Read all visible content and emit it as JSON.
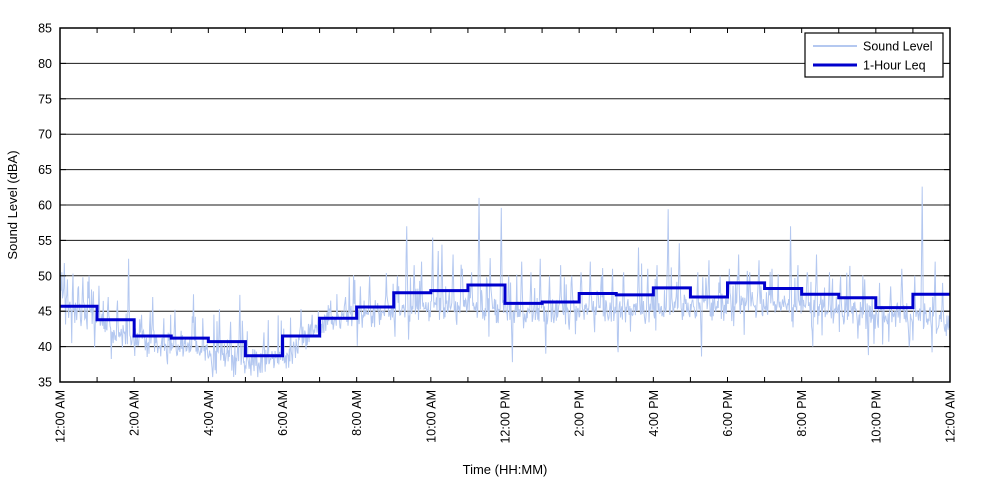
{
  "figure": {
    "background": "#ffffff",
    "grid_color": "#1a1a1a",
    "axis_color": "#000000"
  },
  "axes": {
    "ylabel": "Sound Level (dBA)",
    "xlabel": "Time (HH:MM)",
    "ylim": [
      35,
      85
    ],
    "yticks": [
      35,
      40,
      45,
      50,
      55,
      60,
      65,
      70,
      75,
      80,
      85
    ],
    "x_hours": 24,
    "xtick_label_every_hours": 2,
    "xtick_labels": [
      "12:00 AM",
      "2:00 AM",
      "4:00 AM",
      "6:00 AM",
      "8:00 AM",
      "10:00 AM",
      "12:00 PM",
      "2:00 PM",
      "4:00 PM",
      "6:00 PM",
      "8:00 PM",
      "10:00 PM",
      "12:00 AM"
    ]
  },
  "legend": {
    "position": "top-right",
    "items": [
      {
        "label": "Sound Level",
        "color": "#b4c8f0",
        "line_width": 2
      },
      {
        "label": "1-Hour Leq",
        "color": "#0000cd",
        "line_width": 3
      }
    ]
  },
  "chart_data": {
    "type": "line",
    "title": "",
    "xlabel": "Time (HH:MM)",
    "ylabel": "Sound Level (dBA)",
    "xlim_hours": [
      0,
      24
    ],
    "ylim": [
      35,
      85
    ],
    "grid": "horizontal-solid",
    "legend_position": "top-right",
    "series": [
      {
        "name": "Sound Level",
        "kind": "noisy-minute-trace",
        "color": "#b4c8f0",
        "stroke_width": 1,
        "noise": {
          "seed": 42,
          "points_per_hour": 60,
          "amplitude": 2.3,
          "spike_prob": 0.09,
          "dip_prob": 0.05,
          "hourly_centers": [
            45.6,
            43.2,
            40.8,
            39.8,
            39.5,
            37.9,
            38.4,
            43.0,
            44.7,
            45.0,
            45.3,
            45.6,
            45.2,
            44.8,
            45.2,
            45.5,
            45.6,
            45.4,
            45.6,
            46.0,
            45.5,
            45.0,
            44.3,
            44.4,
            42.8
          ],
          "events_up": [
            [
              0.05,
              50.5
            ],
            [
              0.12,
              51.8
            ],
            [
              0.2,
              49.5
            ],
            [
              0.35,
              50.3
            ],
            [
              0.5,
              48.5
            ],
            [
              0.62,
              49.8
            ],
            [
              0.78,
              50.0
            ],
            [
              0.9,
              47.8
            ],
            [
              1.05,
              48.6
            ],
            [
              1.3,
              47.0
            ],
            [
              1.55,
              46.5
            ],
            [
              1.85,
              52.4
            ],
            [
              2.2,
              44.5
            ],
            [
              2.5,
              47.0
            ],
            [
              2.8,
              44.0
            ],
            [
              3.1,
              45.2
            ],
            [
              3.6,
              47.4
            ],
            [
              3.85,
              44.0
            ],
            [
              4.3,
              45.3
            ],
            [
              4.6,
              43.5
            ],
            [
              4.85,
              47.3
            ],
            [
              5.5,
              42.0
            ],
            [
              6.5,
              45.3
            ],
            [
              6.8,
              44.5
            ],
            [
              7.3,
              46.5
            ],
            [
              7.7,
              47.0
            ],
            [
              8.1,
              48.5
            ],
            [
              8.35,
              50.0
            ],
            [
              8.8,
              50.4
            ],
            [
              9.1,
              50.0
            ],
            [
              9.35,
              57.0
            ],
            [
              9.55,
              51.5
            ],
            [
              9.75,
              52.0
            ],
            [
              10.05,
              55.4
            ],
            [
              10.2,
              53.5
            ],
            [
              10.3,
              54.4
            ],
            [
              10.6,
              53.0
            ],
            [
              10.85,
              51.0
            ],
            [
              11.1,
              50.5
            ],
            [
              11.3,
              61.0
            ],
            [
              11.6,
              52.5
            ],
            [
              11.9,
              59.6
            ],
            [
              12.1,
              50.0
            ],
            [
              12.45,
              52.0
            ],
            [
              12.7,
              50.5
            ],
            [
              12.95,
              52.4
            ],
            [
              13.2,
              50.0
            ],
            [
              13.5,
              51.5
            ],
            [
              13.8,
              50.0
            ],
            [
              14.05,
              50.5
            ],
            [
              14.3,
              52.0
            ],
            [
              14.6,
              50.0
            ],
            [
              14.9,
              51.0
            ],
            [
              15.2,
              50.5
            ],
            [
              15.6,
              54.0
            ],
            [
              15.85,
              51.0
            ],
            [
              16.1,
              51.5
            ],
            [
              16.4,
              59.4
            ],
            [
              16.7,
              54.6
            ],
            [
              17.2,
              50.5
            ],
            [
              17.5,
              52.2
            ],
            [
              17.8,
              50.0
            ],
            [
              18.05,
              51.0
            ],
            [
              18.3,
              53.0
            ],
            [
              18.6,
              50.5
            ],
            [
              18.85,
              52.2
            ],
            [
              19.2,
              51.0
            ],
            [
              19.7,
              57.0
            ],
            [
              19.9,
              51.5
            ],
            [
              20.15,
              50.5
            ],
            [
              20.4,
              53.0
            ],
            [
              20.75,
              50.5
            ],
            [
              21.05,
              50.0
            ],
            [
              21.3,
              51.4
            ],
            [
              21.7,
              49.5
            ],
            [
              22.1,
              49.0
            ],
            [
              22.4,
              48.5
            ],
            [
              22.7,
              51.0
            ],
            [
              23.05,
              50.0
            ],
            [
              23.25,
              62.6
            ],
            [
              23.6,
              52.0
            ],
            [
              23.8,
              49.0
            ]
          ],
          "events_down": [
            [
              2.9,
              37.5
            ],
            [
              4.1,
              37.0
            ],
            [
              5.15,
              35.9
            ],
            [
              5.4,
              36.3
            ],
            [
              12.2,
              37.8
            ],
            [
              13.1,
              39.0
            ],
            [
              15.05,
              39.2
            ],
            [
              17.3,
              38.6
            ],
            [
              20.3,
              40.0
            ],
            [
              21.8,
              38.8
            ],
            [
              22.9,
              40.0
            ],
            [
              23.9,
              41.5
            ]
          ]
        }
      },
      {
        "name": "1-Hour Leq",
        "kind": "step-hourly",
        "color": "#0000cd",
        "stroke_width": 3,
        "start_hour": 0,
        "values": [
          45.7,
          43.8,
          41.5,
          41.2,
          40.7,
          38.7,
          41.5,
          44.0,
          45.6,
          47.6,
          47.9,
          48.7,
          46.1,
          46.3,
          47.5,
          47.3,
          48.3,
          47.0,
          49.0,
          48.2,
          47.4,
          46.9,
          45.5,
          47.4
        ]
      }
    ]
  }
}
